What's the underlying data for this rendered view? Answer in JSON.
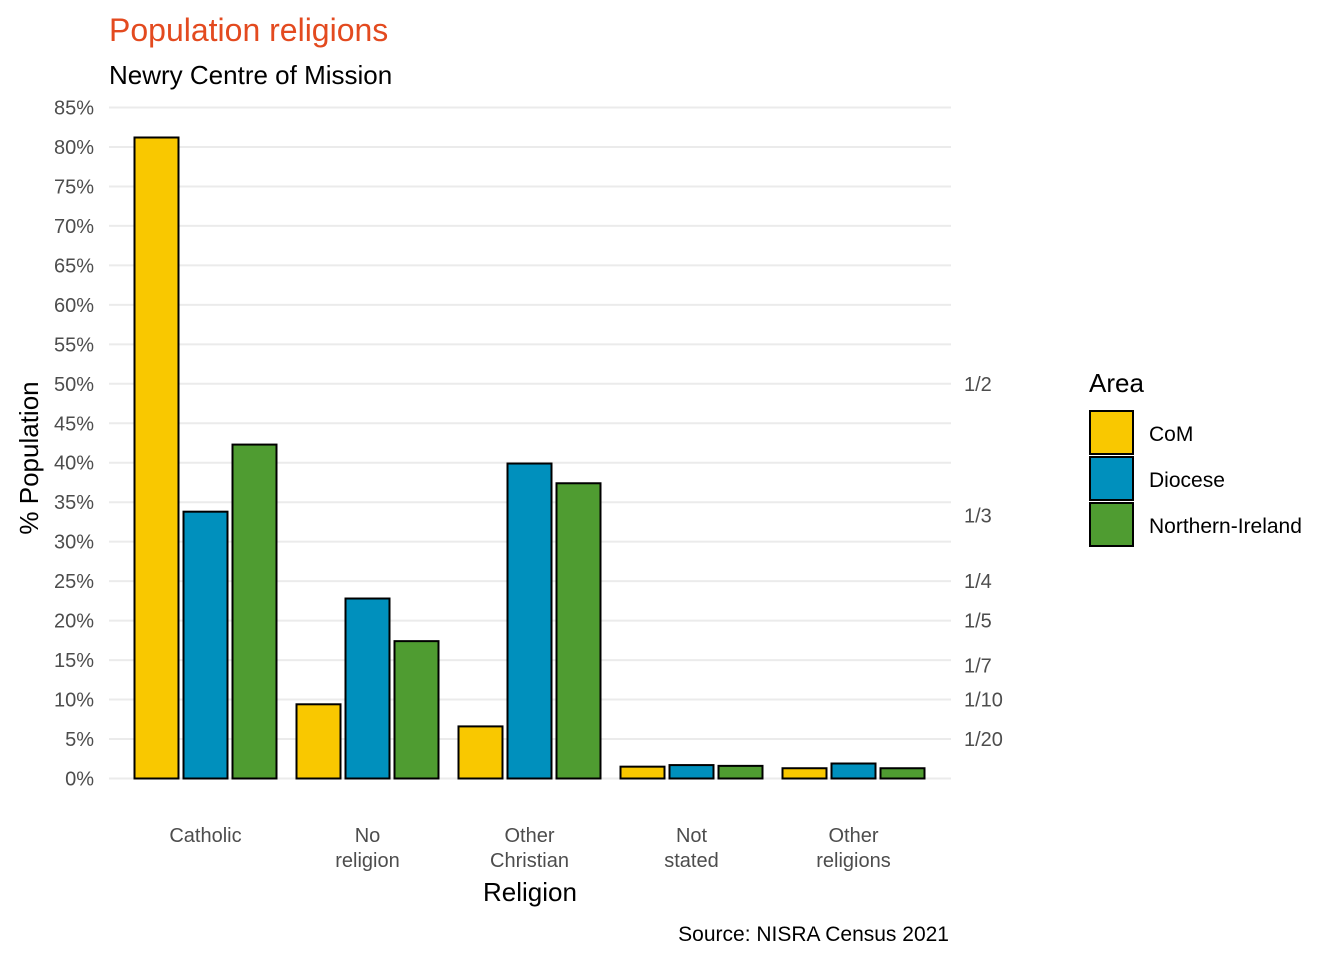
{
  "chart_data": {
    "type": "bar",
    "title": "Population religions",
    "subtitle": "Newry Centre of Mission",
    "xlabel": "Religion",
    "ylabel": "% Population",
    "caption": "Source: NISRA Census 2021",
    "categories": [
      [
        "Catholic"
      ],
      [
        "No",
        "religion"
      ],
      [
        "Other",
        "Christian"
      ],
      [
        "Not",
        "stated"
      ],
      [
        "Other",
        "religions"
      ]
    ],
    "series": [
      {
        "name": "CoM",
        "color": "#f9c800",
        "values": [
          81.2,
          9.4,
          6.6,
          1.5,
          1.3
        ]
      },
      {
        "name": "Diocese",
        "color": "#0090bd",
        "values": [
          33.8,
          22.8,
          39.9,
          1.7,
          1.9
        ]
      },
      {
        "name": "Northern-Ireland",
        "color": "#4f9c31",
        "values": [
          42.3,
          17.4,
          37.4,
          1.6,
          1.3
        ]
      }
    ],
    "ylim": [
      0,
      85
    ],
    "yticks": [
      0,
      5,
      10,
      15,
      20,
      25,
      30,
      35,
      40,
      45,
      50,
      55,
      60,
      65,
      70,
      75,
      80,
      85
    ],
    "ytick_labels": [
      "0%",
      "5%",
      "10%",
      "15%",
      "20%",
      "25%",
      "30%",
      "35%",
      "40%",
      "45%",
      "50%",
      "55%",
      "60%",
      "65%",
      "70%",
      "75%",
      "80%",
      "85%"
    ],
    "secondary_axis": [
      {
        "value": 50,
        "label": "1/2"
      },
      {
        "value": 33.3,
        "label": "1/3"
      },
      {
        "value": 25,
        "label": "1/4"
      },
      {
        "value": 20,
        "label": "1/5"
      },
      {
        "value": 14.3,
        "label": "1/7"
      },
      {
        "value": 10,
        "label": "1/10"
      },
      {
        "value": 5,
        "label": "1/20"
      }
    ],
    "grid": true,
    "legend": {
      "title": "Area",
      "position": "right"
    }
  }
}
